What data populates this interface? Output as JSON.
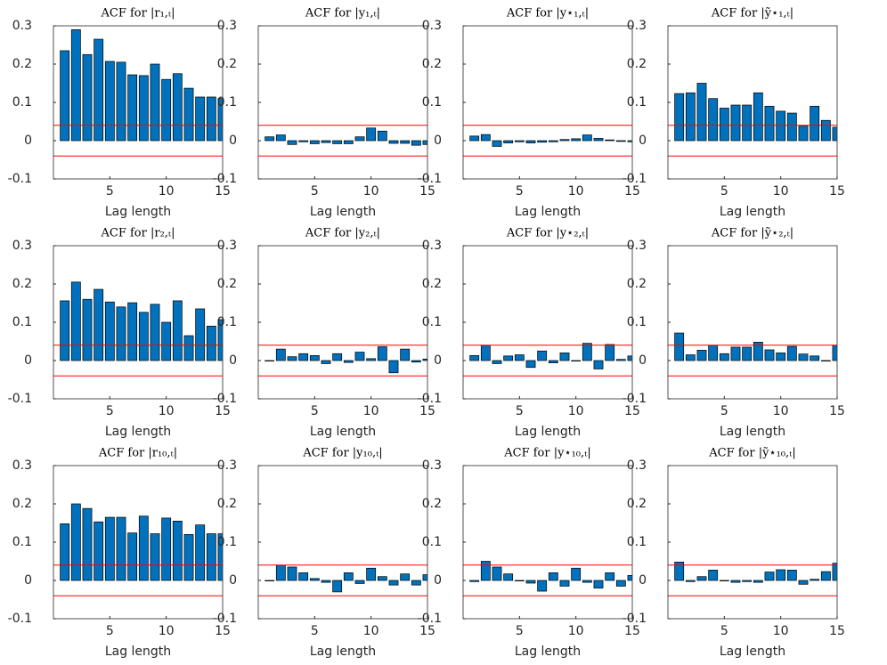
{
  "chart_data": [
    {
      "type": "bar",
      "title": "ACF for |r₁,ₜ|",
      "xlabel": "Lag length",
      "x": [
        1,
        2,
        3,
        4,
        5,
        6,
        7,
        8,
        9,
        10,
        11,
        12,
        13,
        14,
        15
      ],
      "values": [
        0.235,
        0.29,
        0.225,
        0.265,
        0.207,
        0.205,
        0.172,
        0.17,
        0.2,
        0.16,
        0.175,
        0.137,
        0.114,
        0.114,
        0.11
      ],
      "color": "#0072bd",
      "confidence_bounds": [
        -0.04,
        0.04
      ],
      "bound_color": "#ff0000",
      "xlim": [
        0,
        15
      ],
      "xticks": [
        5,
        10,
        15
      ],
      "ylim": [
        -0.1,
        0.3
      ],
      "yticks": [
        -0.1,
        0,
        0.1,
        0.2,
        0.3
      ]
    },
    {
      "type": "bar",
      "title": "ACF for |y₁,ₜ|",
      "xlabel": "Lag length",
      "x": [
        1,
        2,
        3,
        4,
        5,
        6,
        7,
        8,
        9,
        10,
        11,
        12,
        13,
        14,
        15
      ],
      "values": [
        0.01,
        0.015,
        -0.01,
        -0.003,
        -0.008,
        -0.005,
        -0.008,
        -0.008,
        0.01,
        0.033,
        0.025,
        -0.007,
        -0.007,
        -0.012,
        -0.01
      ],
      "color": "#0072bd",
      "confidence_bounds": [
        -0.04,
        0.04
      ],
      "bound_color": "#ff0000",
      "xlim": [
        0,
        15
      ],
      "xticks": [
        5,
        10,
        15
      ],
      "ylim": [
        -0.1,
        0.3
      ],
      "yticks": [
        -0.1,
        0,
        0.1,
        0.2,
        0.3
      ]
    },
    {
      "type": "bar",
      "title": "ACF for |y⋆₁,ₜ|",
      "xlabel": "Lag length",
      "x": [
        1,
        2,
        3,
        4,
        5,
        6,
        7,
        8,
        9,
        10,
        11,
        12,
        13,
        14,
        15
      ],
      "values": [
        0.012,
        0.016,
        -0.015,
        -0.006,
        -0.003,
        -0.006,
        -0.004,
        -0.003,
        0.003,
        0.005,
        0.015,
        0.006,
        0.002,
        -0.002,
        -0.003
      ],
      "color": "#0072bd",
      "confidence_bounds": [
        -0.04,
        0.04
      ],
      "bound_color": "#ff0000",
      "xlim": [
        0,
        15
      ],
      "xticks": [
        5,
        10,
        15
      ],
      "ylim": [
        -0.1,
        0.3
      ],
      "yticks": [
        -0.1,
        0,
        0.1,
        0.2,
        0.3
      ]
    },
    {
      "type": "bar",
      "title": "ACF for |ỹ⋆₁,ₜ|",
      "xlabel": "Lag length",
      "x": [
        1,
        2,
        3,
        4,
        5,
        6,
        7,
        8,
        9,
        10,
        11,
        12,
        13,
        14,
        15
      ],
      "values": [
        0.123,
        0.125,
        0.15,
        0.11,
        0.085,
        0.093,
        0.093,
        0.125,
        0.09,
        0.077,
        0.072,
        0.038,
        0.09,
        0.053,
        0.035
      ],
      "color": "#0072bd",
      "confidence_bounds": [
        -0.04,
        0.04
      ],
      "bound_color": "#ff0000",
      "xlim": [
        0,
        15
      ],
      "xticks": [
        5,
        10,
        15
      ],
      "ylim": [
        -0.1,
        0.3
      ],
      "yticks": [
        -0.1,
        0,
        0.1,
        0.2,
        0.3
      ]
    },
    {
      "type": "bar",
      "title": "ACF for |r₂,ₜ|",
      "xlabel": "Lag length",
      "x": [
        1,
        2,
        3,
        4,
        5,
        6,
        7,
        8,
        9,
        10,
        11,
        12,
        13,
        14,
        15
      ],
      "values": [
        0.156,
        0.205,
        0.16,
        0.186,
        0.153,
        0.14,
        0.151,
        0.126,
        0.147,
        0.1,
        0.156,
        0.065,
        0.135,
        0.09,
        0.107
      ],
      "color": "#0072bd",
      "confidence_bounds": [
        -0.04,
        0.04
      ],
      "bound_color": "#ff0000",
      "xlim": [
        0,
        15
      ],
      "xticks": [
        5,
        10,
        15
      ],
      "ylim": [
        -0.1,
        0.3
      ],
      "yticks": [
        -0.1,
        0,
        0.1,
        0.2,
        0.3
      ]
    },
    {
      "type": "bar",
      "title": "ACF for |y₂,ₜ|",
      "xlabel": "Lag length",
      "x": [
        1,
        2,
        3,
        4,
        5,
        6,
        7,
        8,
        9,
        10,
        11,
        12,
        13,
        14,
        15
      ],
      "values": [
        0,
        0.03,
        0.01,
        0.018,
        0.013,
        -0.008,
        0.018,
        -0.005,
        0.022,
        0.005,
        0.036,
        -0.032,
        0.03,
        -0.004,
        0.004
      ],
      "color": "#0072bd",
      "confidence_bounds": [
        -0.04,
        0.04
      ],
      "bound_color": "#ff0000",
      "xlim": [
        0,
        15
      ],
      "xticks": [
        5,
        10,
        15
      ],
      "ylim": [
        -0.1,
        0.3
      ],
      "yticks": [
        -0.1,
        0,
        0.1,
        0.2,
        0.3
      ]
    },
    {
      "type": "bar",
      "title": "ACF for |y⋆₂,ₜ|",
      "xlabel": "Lag length",
      "x": [
        1,
        2,
        3,
        4,
        5,
        6,
        7,
        8,
        9,
        10,
        11,
        12,
        13,
        14,
        15
      ],
      "values": [
        0.013,
        0.04,
        -0.008,
        0.012,
        0.015,
        -0.018,
        0.025,
        -0.006,
        0.02,
        0,
        0.045,
        -0.022,
        0.042,
        0.003,
        0.012
      ],
      "color": "#0072bd",
      "confidence_bounds": [
        -0.04,
        0.04
      ],
      "bound_color": "#ff0000",
      "xlim": [
        0,
        15
      ],
      "xticks": [
        5,
        10,
        15
      ],
      "ylim": [
        -0.1,
        0.3
      ],
      "yticks": [
        -0.1,
        0,
        0.1,
        0.2,
        0.3
      ]
    },
    {
      "type": "bar",
      "title": "ACF for |ỹ⋆₂,ₜ|",
      "xlabel": "Lag length",
      "x": [
        1,
        2,
        3,
        4,
        5,
        6,
        7,
        8,
        9,
        10,
        11,
        12,
        13,
        14,
        15
      ],
      "values": [
        0.072,
        0.015,
        0.027,
        0.04,
        0.018,
        0.035,
        0.035,
        0.048,
        0.028,
        0.02,
        0.037,
        0.017,
        0.012,
        0,
        0.04
      ],
      "color": "#0072bd",
      "confidence_bounds": [
        -0.04,
        0.04
      ],
      "bound_color": "#ff0000",
      "xlim": [
        0,
        15
      ],
      "xticks": [
        5,
        10,
        15
      ],
      "ylim": [
        -0.1,
        0.3
      ],
      "yticks": [
        -0.1,
        0,
        0.1,
        0.2,
        0.3
      ]
    },
    {
      "type": "bar",
      "title": "ACF for |r₁₀,ₜ|",
      "xlabel": "Lag length",
      "x": [
        1,
        2,
        3,
        4,
        5,
        6,
        7,
        8,
        9,
        10,
        11,
        12,
        13,
        14,
        15
      ],
      "values": [
        0.148,
        0.2,
        0.188,
        0.153,
        0.165,
        0.165,
        0.124,
        0.168,
        0.122,
        0.163,
        0.155,
        0.12,
        0.145,
        0.122,
        0.122
      ],
      "color": "#0072bd",
      "confidence_bounds": [
        -0.04,
        0.04
      ],
      "bound_color": "#ff0000",
      "xlim": [
        0,
        15
      ],
      "xticks": [
        5,
        10,
        15
      ],
      "ylim": [
        -0.1,
        0.3
      ],
      "yticks": [
        -0.1,
        0,
        0.1,
        0.2,
        0.3
      ]
    },
    {
      "type": "bar",
      "title": "ACF for |y₁₀,ₜ|",
      "xlabel": "Lag length",
      "x": [
        1,
        2,
        3,
        4,
        5,
        6,
        7,
        8,
        9,
        10,
        11,
        12,
        13,
        14,
        15
      ],
      "values": [
        0,
        0.04,
        0.035,
        0.02,
        0.005,
        -0.005,
        -0.03,
        0.02,
        -0.008,
        0.032,
        0.01,
        -0.012,
        0.017,
        -0.012,
        0.015
      ],
      "color": "#0072bd",
      "confidence_bounds": [
        -0.04,
        0.04
      ],
      "bound_color": "#ff0000",
      "xlim": [
        0,
        15
      ],
      "xticks": [
        5,
        10,
        15
      ],
      "ylim": [
        -0.1,
        0.3
      ],
      "yticks": [
        -0.1,
        0,
        0.1,
        0.2,
        0.3
      ]
    },
    {
      "type": "bar",
      "title": "ACF for |y⋆₁₀,ₜ|",
      "xlabel": "Lag length",
      "x": [
        1,
        2,
        3,
        4,
        5,
        6,
        7,
        8,
        9,
        10,
        11,
        12,
        13,
        14,
        15
      ],
      "values": [
        -0.003,
        0.05,
        0.035,
        0.017,
        0,
        -0.007,
        -0.028,
        0.02,
        -0.015,
        0.032,
        -0.005,
        -0.02,
        0.02,
        -0.015,
        0.013
      ],
      "color": "#0072bd",
      "confidence_bounds": [
        -0.04,
        0.04
      ],
      "bound_color": "#ff0000",
      "xlim": [
        0,
        15
      ],
      "xticks": [
        5,
        10,
        15
      ],
      "ylim": [
        -0.1,
        0.3
      ],
      "yticks": [
        -0.1,
        0,
        0.1,
        0.2,
        0.3
      ]
    },
    {
      "type": "bar",
      "title": "ACF for |ỹ⋆₁₀,ₜ|",
      "xlabel": "Lag length",
      "x": [
        1,
        2,
        3,
        4,
        5,
        6,
        7,
        8,
        9,
        10,
        11,
        12,
        13,
        14,
        15
      ],
      "values": [
        0.048,
        -0.003,
        0.01,
        0.027,
        0,
        -0.005,
        -0.003,
        -0.005,
        0.022,
        0.028,
        0.027,
        -0.01,
        0.003,
        0.023,
        0.045
      ],
      "color": "#0072bd",
      "confidence_bounds": [
        -0.04,
        0.04
      ],
      "bound_color": "#ff0000",
      "xlim": [
        0,
        15
      ],
      "xticks": [
        5,
        10,
        15
      ],
      "ylim": [
        -0.1,
        0.3
      ],
      "yticks": [
        -0.1,
        0,
        0.1,
        0.2,
        0.3
      ]
    }
  ]
}
